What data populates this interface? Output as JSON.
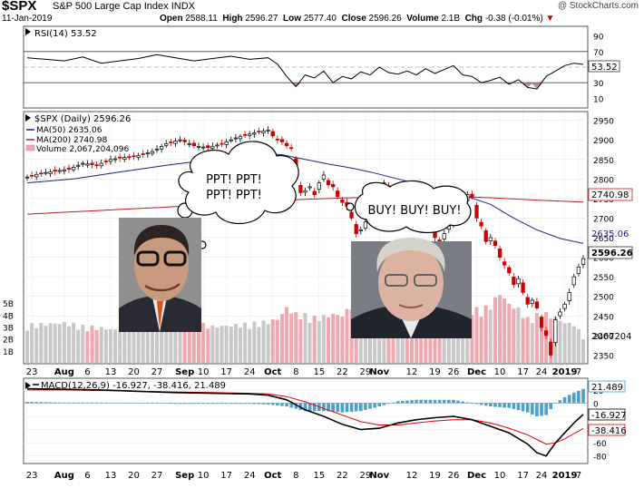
{
  "header": {
    "symbol": "$SPX",
    "name": "S&P 500 Large Cap Index",
    "exchange": "INDX",
    "date": "11-Jan-2019",
    "open_label": "Open",
    "open": "2588.11",
    "high_label": "High",
    "high": "2596.27",
    "low_label": "Low",
    "low": "2577.40",
    "close_label": "Close",
    "close": "2596.26",
    "volume_label": "Volume",
    "volume": "2.1B",
    "chg_label": "Chg",
    "chg": "-0.38 (-0.01%)",
    "chg_arrow": "▼",
    "watermark": "@ StockCharts.com"
  },
  "colors": {
    "up": "#000000",
    "down": "#cc0000",
    "ma50": "#1a237e",
    "ma200": "#b71c1c",
    "volume_up": "#c8c8c8",
    "volume_down": "#f0a8b0",
    "macd_line": "#000000",
    "signal_line": "#e00000",
    "histogram": "#4aa0cc",
    "rsi_fill": "#a06060"
  },
  "x_axis": {
    "labels": [
      {
        "text": "23",
        "day": 1
      },
      {
        "text": "Aug",
        "day": 8
      },
      {
        "text": "6",
        "day": 13
      },
      {
        "text": "13",
        "day": 18
      },
      {
        "text": "20",
        "day": 23
      },
      {
        "text": "27",
        "day": 28
      },
      {
        "text": "Sep",
        "day": 34
      },
      {
        "text": "10",
        "day": 38
      },
      {
        "text": "17",
        "day": 43
      },
      {
        "text": "24",
        "day": 48
      },
      {
        "text": "Oct",
        "day": 53
      },
      {
        "text": "8",
        "day": 58
      },
      {
        "text": "15",
        "day": 63
      },
      {
        "text": "22",
        "day": 68
      },
      {
        "text": "29",
        "day": 73
      },
      {
        "text": "Nov",
        "day": 76
      },
      {
        "text": "12",
        "day": 83
      },
      {
        "text": "19",
        "day": 88
      },
      {
        "text": "26",
        "day": 92
      },
      {
        "text": "Dec",
        "day": 97
      },
      {
        "text": "10",
        "day": 102
      },
      {
        "text": "17",
        "day": 107
      },
      {
        "text": "24",
        "day": 111
      },
      {
        "text": "2019",
        "day": 116
      },
      {
        "text": "7",
        "day": 119
      }
    ],
    "bold": [
      "Aug",
      "Sep",
      "Oct",
      "Nov",
      "Dec",
      "2019"
    ]
  },
  "rsi_panel": {
    "legend": "RSI(14) 53.52",
    "ticks": [
      "90",
      "70",
      "50",
      "30",
      "10"
    ],
    "levels": [
      90,
      70,
      50,
      30,
      10
    ],
    "current_label": "53.52",
    "current": 53.52
  },
  "price_panel": {
    "legend_title": "$SPX (Daily) 2596.26",
    "legend_ma50": "MA(50) 2635.06",
    "legend_ma200": "MA(200) 2740.98",
    "legend_volume": "Volume 2,067,204,096",
    "ticks": [
      "2950",
      "2900",
      "2850",
      "2800",
      "2750",
      "2700",
      "2650",
      "2600",
      "2550",
      "2500",
      "2450",
      "2400",
      "2350"
    ],
    "tick_values": [
      2950,
      2900,
      2850,
      2800,
      2750,
      2700,
      2650,
      2600,
      2550,
      2500,
      2450,
      2400,
      2350
    ],
    "ylim": [
      2330,
      2970
    ],
    "label_ma200": "2740.98",
    "label_ma50": "2635.06",
    "label_close": "2596.26",
    "label_volume": "2067204",
    "volume_ticks": [
      "5B",
      "4B",
      "3B",
      "2B",
      "1B"
    ],
    "volume_tick_values": [
      5,
      4,
      3,
      2,
      1
    ],
    "volume_max": 7.6
  },
  "macd_panel": {
    "legend": "MACD(12,26,9) -16.927, -38.416, 21.489",
    "ticks": [
      "20",
      "0",
      "-20",
      "-40",
      "-60",
      "-80"
    ],
    "tick_values": [
      20,
      0,
      -20,
      -40,
      -60,
      -80
    ],
    "ylim": [
      -90,
      35
    ],
    "label_hist": "21.489",
    "label_macd": "-16.927",
    "label_signal": "-38.416"
  },
  "annotations": {
    "bubble_left": "PPT! PPT! PPT! PPT!",
    "bubble_right": "BUY! BUY! BUY!"
  },
  "chart_data": [
    {
      "type": "line",
      "title": "RSI(14) 53.52",
      "x": [
        0,
        4,
        8,
        12,
        16,
        20,
        24,
        28,
        32,
        36,
        40,
        44,
        48,
        52,
        54,
        56,
        58,
        60,
        62,
        64,
        66,
        68,
        70,
        72,
        74,
        76,
        78,
        80,
        82,
        84,
        86,
        88,
        90,
        92,
        94,
        96,
        98,
        100,
        102,
        104,
        106,
        108,
        110,
        112,
        114,
        116,
        118,
        120
      ],
      "values": [
        62,
        60,
        58,
        63,
        55,
        58,
        61,
        66,
        62,
        58,
        61,
        64,
        60,
        62,
        54,
        38,
        25,
        40,
        36,
        45,
        30,
        38,
        35,
        44,
        40,
        50,
        43,
        41,
        45,
        40,
        48,
        42,
        47,
        52,
        40,
        38,
        30,
        33,
        37,
        28,
        34,
        24,
        22,
        38,
        45,
        52,
        55,
        53.52
      ],
      "ylim": [
        0,
        100
      ]
    },
    {
      "type": "line",
      "title": "$SPX (Daily) 2596.26",
      "series": [
        {
          "name": "$SPX",
          "x": [
            0,
            3,
            6,
            9,
            12,
            15,
            18,
            21,
            24,
            27,
            30,
            33,
            36,
            39,
            42,
            45,
            48,
            50,
            52,
            53,
            54,
            55,
            56,
            57,
            58,
            59,
            60,
            61,
            62,
            63,
            64,
            65,
            66,
            67,
            68,
            69,
            70,
            71,
            72,
            73,
            74,
            75,
            76,
            77,
            78,
            79,
            80,
            81,
            82,
            83,
            84,
            85,
            86,
            87,
            88,
            89,
            90,
            91,
            92,
            93,
            94,
            95,
            96,
            97,
            98,
            99,
            100,
            101,
            102,
            103,
            104,
            105,
            106,
            107,
            108,
            109,
            110,
            111,
            112,
            113,
            114,
            115,
            116,
            117,
            118,
            119,
            120
          ],
          "values": [
            2805,
            2815,
            2820,
            2825,
            2840,
            2835,
            2850,
            2855,
            2860,
            2870,
            2890,
            2900,
            2885,
            2880,
            2890,
            2905,
            2915,
            2920,
            2925,
            2910,
            2900,
            2895,
            2885,
            2880,
            2800,
            2765,
            2770,
            2780,
            2760,
            2790,
            2810,
            2785,
            2780,
            2755,
            2740,
            2730,
            2700,
            2660,
            2670,
            2690,
            2720,
            2740,
            2780,
            2790,
            2775,
            2730,
            2750,
            2770,
            2760,
            2740,
            2730,
            2720,
            2700,
            2680,
            2650,
            2640,
            2660,
            2680,
            2700,
            2730,
            2740,
            2760,
            2755,
            2700,
            2680,
            2640,
            2650,
            2630,
            2600,
            2580,
            2560,
            2530,
            2545,
            2510,
            2480,
            2490,
            2470,
            2420,
            2400,
            2350,
            2440,
            2460,
            2480,
            2510,
            2550,
            2575,
            2596.26
          ]
        },
        {
          "name": "MA(50)",
          "x": [
            0,
            10,
            20,
            30,
            40,
            50,
            55,
            60,
            65,
            70,
            75,
            80,
            85,
            90,
            95,
            100,
            105,
            110,
            115,
            120
          ],
          "values": [
            2790,
            2800,
            2818,
            2835,
            2850,
            2865,
            2862,
            2850,
            2838,
            2828,
            2815,
            2800,
            2785,
            2770,
            2755,
            2735,
            2700,
            2670,
            2648,
            2635.06
          ]
        },
        {
          "name": "MA(200)",
          "x": [
            0,
            10,
            20,
            30,
            40,
            50,
            60,
            70,
            80,
            90,
            100,
            110,
            120
          ],
          "values": [
            2710,
            2716,
            2722,
            2728,
            2735,
            2742,
            2748,
            2752,
            2755,
            2756,
            2752,
            2746,
            2740.98
          ]
        }
      ],
      "ylim": [
        2330,
        2970
      ]
    },
    {
      "type": "bar",
      "title": "Volume 2,067,204,096",
      "x": [
        0,
        4,
        8,
        12,
        16,
        20,
        24,
        28,
        32,
        36,
        40,
        44,
        48,
        52,
        54,
        56,
        58,
        60,
        62,
        64,
        66,
        68,
        70,
        72,
        74,
        76,
        78,
        80,
        82,
        84,
        86,
        88,
        90,
        92,
        94,
        96,
        98,
        100,
        102,
        104,
        106,
        108,
        110,
        112,
        114,
        116,
        118,
        120
      ],
      "values": [
        3.0,
        3.1,
        3.2,
        2.9,
        2.8,
        2.6,
        2.9,
        2.8,
        3.0,
        3.2,
        2.9,
        3.0,
        3.1,
        3.3,
        3.5,
        4.4,
        3.9,
        3.8,
        3.6,
        3.7,
        3.9,
        3.8,
        4.6,
        4.2,
        3.8,
        3.6,
        3.4,
        3.3,
        3.2,
        3.0,
        3.4,
        3.8,
        4.1,
        4.0,
        3.9,
        4.3,
        4.2,
        4.6,
        5.6,
        4.7,
        4.3,
        3.5,
        3.8,
        3.9,
        3.6,
        3.2,
        3.1,
        2.1
      ],
      "ylim": [
        0,
        7.6
      ]
    },
    {
      "type": "line",
      "title": "MACD(12,26,9) -16.927, -38.416, 21.489",
      "series": [
        {
          "name": "MACD",
          "x": [
            0,
            8,
            16,
            24,
            32,
            40,
            48,
            52,
            56,
            60,
            64,
            68,
            72,
            76,
            80,
            84,
            88,
            92,
            96,
            100,
            104,
            108,
            110,
            112,
            114,
            116,
            118,
            120
          ],
          "values": [
            22,
            21,
            20,
            18,
            16,
            15,
            14,
            12,
            5,
            -10,
            -20,
            -32,
            -40,
            -38,
            -30,
            -25,
            -22,
            -20,
            -25,
            -35,
            -45,
            -62,
            -75,
            -80,
            -60,
            -45,
            -30,
            -16.927
          ]
        },
        {
          "name": "Signal",
          "x": [
            0,
            8,
            16,
            24,
            32,
            40,
            48,
            52,
            56,
            60,
            64,
            68,
            72,
            76,
            80,
            84,
            88,
            92,
            96,
            100,
            104,
            108,
            110,
            112,
            114,
            116,
            118,
            120
          ],
          "values": [
            20,
            20,
            19,
            18,
            17,
            16,
            15,
            14,
            10,
            2,
            -8,
            -18,
            -28,
            -33,
            -33,
            -30,
            -27,
            -25,
            -25,
            -30,
            -38,
            -48,
            -55,
            -62,
            -60,
            -54,
            -46,
            -38.416
          ]
        },
        {
          "name": "Histogram",
          "x": [
            0,
            8,
            16,
            24,
            32,
            40,
            48,
            52,
            56,
            60,
            64,
            68,
            72,
            76,
            80,
            84,
            88,
            92,
            96,
            100,
            104,
            108,
            110,
            112,
            114,
            116,
            118,
            120
          ],
          "values": [
            2,
            1,
            1,
            0,
            -1,
            -1,
            -1,
            -2,
            -5,
            -12,
            -12,
            -14,
            -12,
            -5,
            3,
            5,
            5,
            5,
            0,
            -5,
            -7,
            -14,
            -20,
            -18,
            0,
            9,
            16,
            21.489
          ]
        }
      ],
      "ylim": [
        -90,
        35
      ]
    }
  ]
}
